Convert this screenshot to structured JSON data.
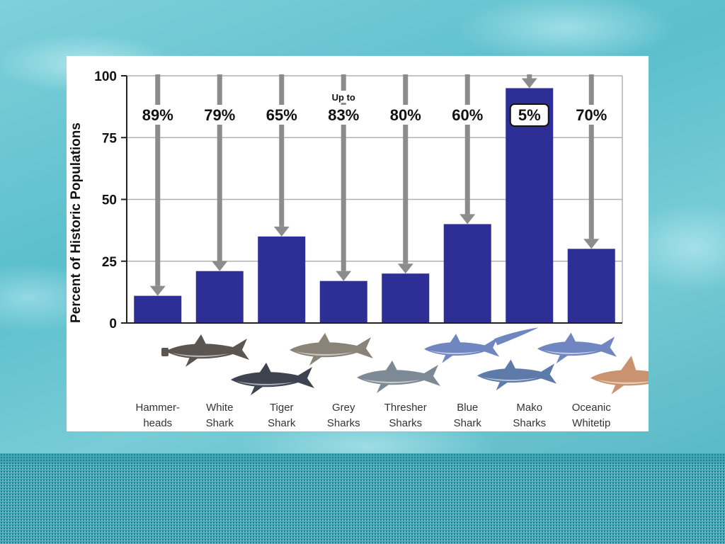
{
  "chart_data": {
    "type": "bar",
    "categories": [
      [
        "Hammer-",
        "heads"
      ],
      [
        "White",
        "Shark"
      ],
      [
        "Tiger",
        "Shark"
      ],
      [
        "Grey",
        "Sharks"
      ],
      [
        "Thresher",
        "Sharks"
      ],
      [
        "Blue",
        "Shark"
      ],
      [
        "Mako",
        "Sharks"
      ],
      [
        "Oceanic",
        "Whitetip"
      ]
    ],
    "values": [
      11,
      21,
      35,
      17,
      20,
      40,
      95,
      30
    ],
    "decline_labels": [
      "89%",
      "79%",
      "65%",
      "83%",
      "80%",
      "60%",
      "5%",
      "70%"
    ],
    "decline_prefixes": [
      "",
      "",
      "",
      "Up to",
      "",
      "",
      "",
      ""
    ],
    "boxed_label_index": 6,
    "ylabel": "Percent of Historic Populations",
    "ylim": [
      0,
      100
    ],
    "yticks": [
      0,
      25,
      50,
      75,
      100
    ],
    "grid": true,
    "colors": {
      "bar": "#2e2f96",
      "arrow": "#8c8c8c",
      "grid": "#b0b0b0",
      "shark_dark": "#5a5550",
      "shark_grey": "#7d8a96",
      "shark_blue": "#6f86c0",
      "shark_tan": "#c8936e"
    },
    "sharks": [
      "hammerhead-shark-icon",
      "white-shark-icon",
      "tiger-shark-icon",
      "grey-shark-icon",
      "thresher-shark-icon",
      "blue-shark-icon",
      "mako-shark-icon",
      "oceanic-whitetip-shark-icon"
    ]
  }
}
